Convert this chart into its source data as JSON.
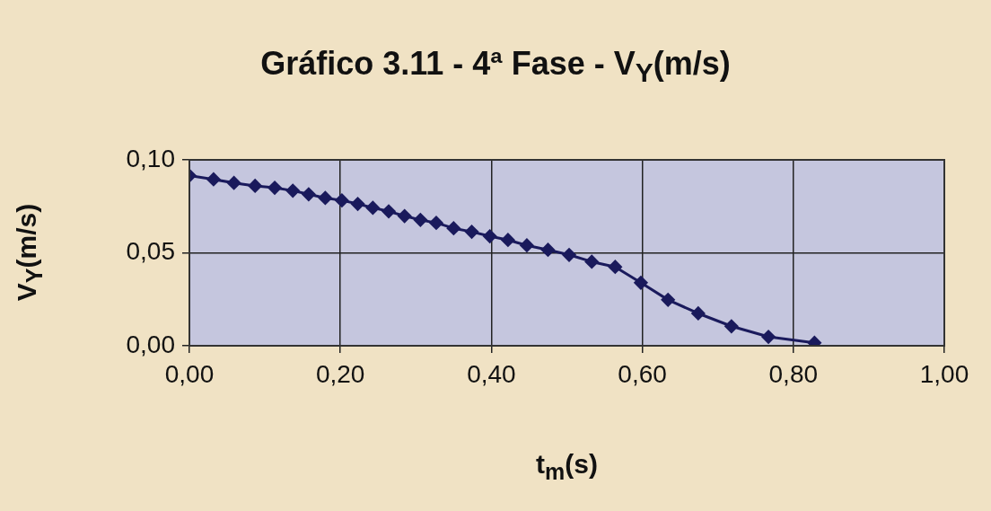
{
  "chart_data": {
    "type": "line",
    "title": "Gráfico 3.11 - 4ª Fase - V$_{Y}$(m/s)",
    "xlabel": "t$_{m}$(s)",
    "ylabel": "V$_{Y}$(m/s)",
    "x": [
      0,
      0.032,
      0.059,
      0.087,
      0.113,
      0.137,
      0.158,
      0.18,
      0.202,
      0.223,
      0.243,
      0.264,
      0.285,
      0.306,
      0.327,
      0.35,
      0.374,
      0.398,
      0.422,
      0.447,
      0.475,
      0.503,
      0.533,
      0.564,
      0.598,
      0.634,
      0.674,
      0.718,
      0.767,
      0.828
    ],
    "series": [
      {
        "color": "#1a1a5c",
        "values": [
          0.0915,
          0.0895,
          0.0876,
          0.086,
          0.085,
          0.0834,
          0.0815,
          0.0795,
          0.0782,
          0.0763,
          0.0742,
          0.0723,
          0.0698,
          0.0677,
          0.0661,
          0.0632,
          0.0613,
          0.0589,
          0.0569,
          0.054,
          0.0516,
          0.0489,
          0.0452,
          0.0424,
          0.0339,
          0.0247,
          0.0174,
          0.0105,
          0.0048,
          0.0016
        ]
      }
    ],
    "xlim": [
      0,
      1
    ],
    "xticks": [
      {
        "value": 0,
        "label": "0,00"
      },
      {
        "value": 0.2,
        "label": "0,20"
      },
      {
        "value": 0.4,
        "label": "0,40"
      },
      {
        "value": 0.6,
        "label": "0,60"
      },
      {
        "value": 0.8,
        "label": "0,80"
      },
      {
        "value": 1,
        "label": "1,00"
      }
    ],
    "ylim": [
      0,
      0.1
    ],
    "yticks": [
      {
        "value": 0,
        "label": "0,00"
      },
      {
        "value": 0.05,
        "label": "0,05"
      },
      {
        "value": 0.1,
        "label": "0,10"
      }
    ],
    "grid": true,
    "legend": false,
    "marker": "diamond",
    "line_style": "solid"
  }
}
